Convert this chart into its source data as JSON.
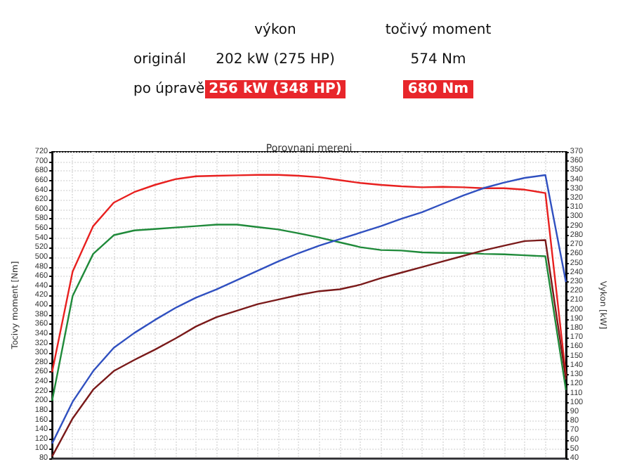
{
  "chart_data": {
    "type": "line",
    "title": "Porovnani mereni",
    "ylabel": "Tocivy moment [Nm]",
    "y2label": "Vykon [kW]",
    "annotations": [
      "výkon",
      "točivý moment",
      "originál",
      "202 kW (275 HP)",
      "574 Nm",
      "po úpravě",
      "256 kW (348 HP)",
      "680 Nm"
    ],
    "categories": [
      null,
      null,
      null,
      null,
      null,
      null,
      null,
      null,
      null,
      null,
      null,
      null,
      null,
      null,
      null,
      null,
      null,
      null,
      null,
      null,
      null,
      null,
      null,
      null,
      null,
      null
    ],
    "series": [
      {
        "color": "#e8201f",
        "values": [
          260,
          470,
          565,
          614,
          636,
          651,
          663,
          669,
          670,
          671,
          672,
          672,
          670,
          667,
          661,
          655,
          651,
          648,
          646,
          647,
          646,
          644,
          644,
          641,
          634,
          252
        ]
      },
      {
        "color": "#1f8a3a",
        "values": [
          200,
          419,
          507,
          546,
          556,
          559,
          562,
          565,
          568,
          568,
          563,
          558,
          550,
          541,
          531,
          521,
          515,
          514,
          510,
          509,
          509,
          507,
          506,
          504,
          502,
          223
        ]
      },
      {
        "color": "#3050c0",
        "axis": "y2",
        "values": [
          56,
          101,
          134,
          159,
          175,
          189,
          202,
          213,
          222,
          232,
          242,
          252,
          261,
          269,
          276,
          283,
          290,
          298,
          305,
          314,
          323,
          331,
          337,
          342,
          345,
          230
        ]
      },
      {
        "color": "#7a1a1a",
        "axis": "y2",
        "values": [
          42,
          83,
          114,
          134,
          146,
          157,
          169,
          182,
          192,
          199,
          206,
          211,
          216,
          220,
          222,
          227,
          234,
          240,
          246,
          252,
          258,
          264,
          269,
          274,
          275,
          125
        ]
      }
    ],
    "ylim": [
      80,
      720
    ],
    "yticks": [
      80,
      100,
      120,
      140,
      160,
      180,
      200,
      220,
      240,
      260,
      280,
      300,
      320,
      340,
      360,
      380,
      400,
      420,
      440,
      460,
      480,
      500,
      520,
      540,
      560,
      580,
      600,
      620,
      640,
      660,
      680,
      700,
      720
    ],
    "y2lim": [
      40,
      370
    ],
    "y2ticks": [
      40,
      50,
      60,
      70,
      80,
      90,
      100,
      110,
      120,
      130,
      140,
      150,
      160,
      170,
      180,
      190,
      200,
      210,
      220,
      230,
      240,
      250,
      260,
      270,
      280,
      290,
      300,
      310,
      320,
      330,
      340,
      350,
      360,
      370
    ],
    "grid": true,
    "tick_labels": "y",
    "marker": "none",
    "line_style": "solid"
  }
}
